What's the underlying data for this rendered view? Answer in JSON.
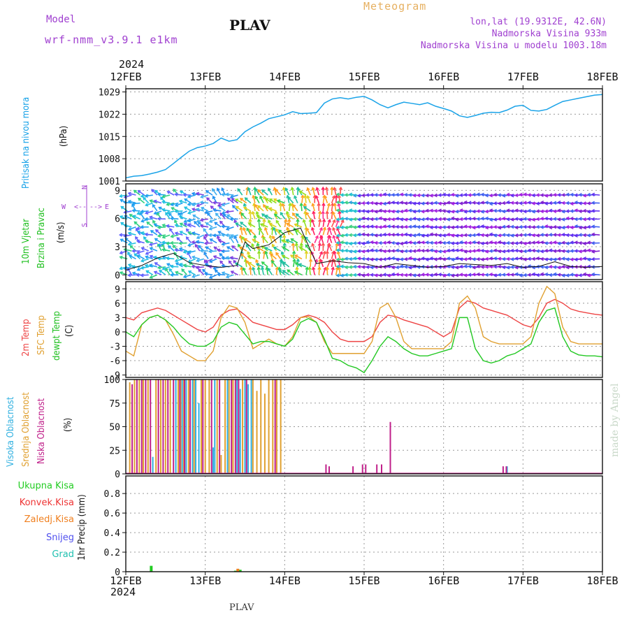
{
  "header": {
    "model_label": "Model",
    "model_name": "wrf-nmm_v3.9.1  e1km",
    "station": "PLAV",
    "meteogram_title": "Meteogram",
    "lonlat": "lon,lat (19.9312E, 42.6N)",
    "elevation": "Nadmorska Visina 933m",
    "model_elevation": "Nadmorska Visina u modelu 1003.18m",
    "year": "2024",
    "footer_station": "PLAV",
    "credit": "made by Angel"
  },
  "colors": {
    "pressure": "#1aa3e8",
    "wind_label": "#20c020",
    "temp2m": "#ee4444",
    "sfc_temp": "#e0a030",
    "dewpt": "#22c822",
    "cloud_high": "#30b0e0",
    "cloud_mid": "#e0a030",
    "cloud_low": "#c0208a",
    "precip_total": "#22cc22",
    "precip_conv": "#ee3333",
    "precip_strat": "#f08020",
    "precip_snow": "#5050ee",
    "precip_grad": "#20c0b0",
    "purple_text": "#a040d0"
  },
  "chart_data": [
    {
      "type": "line",
      "panel": "pressure",
      "title": "Pritisak na nivou mora",
      "ylabel": "(hPa)",
      "x_ticks": [
        "12FEB",
        "13FEB",
        "14FEB",
        "15FEB",
        "16FEB",
        "17FEB",
        "18FEB"
      ],
      "y_ticks": [
        1001,
        1008,
        1015,
        1022,
        1029
      ],
      "ylim": [
        1001,
        1030
      ],
      "grid": true,
      "series": [
        {
          "name": "Pritisak na nivou mora",
          "x": [
            0,
            0.1,
            0.2,
            0.3,
            0.4,
            0.5,
            0.6,
            0.7,
            0.8,
            0.9,
            1.0,
            1.1,
            1.2,
            1.3,
            1.4,
            1.5,
            1.6,
            1.7,
            1.8,
            1.9,
            2.0,
            2.1,
            2.2,
            2.3,
            2.4,
            2.5,
            2.6,
            2.7,
            2.8,
            2.9,
            3.0,
            3.1,
            3.2,
            3.3,
            3.4,
            3.5,
            3.6,
            3.7,
            3.8,
            3.9,
            4.0,
            4.1,
            4.2,
            4.3,
            4.4,
            4.5,
            4.6,
            4.7,
            4.8,
            4.9,
            5.0,
            5.1,
            5.2,
            5.3,
            5.4,
            5.5,
            5.6,
            5.7,
            5.8,
            5.9,
            6.0
          ],
          "values": [
            1002,
            1002.5,
            1002.7,
            1003.2,
            1003.8,
            1004.6,
            1006.5,
            1008.5,
            1010.4,
            1011.5,
            1012,
            1012.8,
            1014.5,
            1013.5,
            1014,
            1016.5,
            1018,
            1019.2,
            1020.6,
            1021.2,
            1021.8,
            1022.8,
            1022.2,
            1022.3,
            1022.5,
            1025.5,
            1026.8,
            1027.2,
            1026.8,
            1027.3,
            1027.6,
            1026.5,
            1025,
            1024,
            1025,
            1025.8,
            1025.4,
            1025,
            1025.6,
            1024.5,
            1023.8,
            1023,
            1021.5,
            1021,
            1021.6,
            1022.3,
            1022.6,
            1022.5,
            1023.3,
            1024.5,
            1024.8,
            1023.2,
            1023,
            1023.5,
            1024.8,
            1026,
            1026.5,
            1027,
            1027.5,
            1028,
            1028.2
          ]
        }
      ]
    },
    {
      "type": "scatter",
      "panel": "wind",
      "title": "10m Vjetar Brzina i Pravac",
      "ylabel": "(m/s)",
      "y_ticks": [
        0,
        3,
        6,
        9
      ],
      "ylim": [
        -0.5,
        9.7
      ],
      "compass_labels": {
        "n": "N",
        "s": "S",
        "e": "E",
        "w": "W"
      },
      "compass_arrows": {
        "n": "<--",
        "s": "-->",
        "w": "<--",
        "e": "-->"
      },
      "grid": true,
      "series": [
        {
          "name": "wind speed",
          "x": [
            0,
            0.2,
            0.4,
            0.6,
            0.8,
            1.0,
            1.2,
            1.4,
            1.5,
            1.6,
            1.8,
            2.0,
            2.2,
            2.4,
            2.6,
            2.8,
            3.0,
            3.2,
            3.4,
            3.6,
            3.8,
            4.0,
            4.2,
            4.4,
            4.6,
            4.8,
            5.0,
            5.2,
            5.4,
            5.6,
            5.8,
            6.0
          ],
          "values": [
            0.5,
            1,
            1.8,
            2.3,
            1.3,
            1,
            0.8,
            1,
            3.5,
            2.8,
            3.2,
            4.5,
            5,
            1.2,
            1.5,
            1.3,
            1.2,
            0.8,
            1.2,
            1,
            0.8,
            0.9,
            1.2,
            1.1,
            1,
            1.2,
            0.8,
            0.9,
            1.4,
            0.9,
            0.8,
            0.9
          ]
        }
      ]
    },
    {
      "type": "line",
      "panel": "temperature",
      "ylabel": "(C)",
      "y_ticks": [
        -9,
        -6,
        -3,
        0,
        3,
        6,
        9
      ],
      "ylim": [
        -9.5,
        10.5
      ],
      "grid": true,
      "series": [
        {
          "name": "2m Temp",
          "x": [
            0,
            0.1,
            0.2,
            0.3,
            0.4,
            0.5,
            0.6,
            0.7,
            0.8,
            0.9,
            1.0,
            1.1,
            1.2,
            1.3,
            1.4,
            1.5,
            1.6,
            1.7,
            1.8,
            1.9,
            2.0,
            2.1,
            2.2,
            2.3,
            2.4,
            2.5,
            2.6,
            2.7,
            2.8,
            2.9,
            3.0,
            3.1,
            3.2,
            3.3,
            3.4,
            3.5,
            3.6,
            3.7,
            3.8,
            3.9,
            4.0,
            4.1,
            4.2,
            4.3,
            4.4,
            4.5,
            4.6,
            4.7,
            4.8,
            4.9,
            5.0,
            5.1,
            5.2,
            5.3,
            5.4,
            5.5,
            5.6,
            5.7,
            5.8,
            5.9,
            6.0
          ],
          "values": [
            3,
            2.5,
            4,
            4.5,
            5,
            4.5,
            3.5,
            2.5,
            1.5,
            0.5,
            0,
            1,
            3.5,
            4.5,
            4.8,
            3.5,
            2,
            1.5,
            1,
            0.5,
            0.5,
            1.5,
            3,
            3.5,
            3,
            2,
            0,
            -1.5,
            -2,
            -2,
            -2,
            -1,
            2,
            3.5,
            3.2,
            2.5,
            2,
            1.5,
            1,
            0,
            -1,
            0,
            5,
            6.5,
            6,
            5,
            4.5,
            4,
            3.5,
            2.5,
            1.5,
            1,
            3,
            6,
            6.8,
            6,
            4.8,
            4.3,
            4,
            3.7,
            3.5
          ]
        },
        {
          "name": "SFC Temp",
          "x": [
            0,
            0.1,
            0.2,
            0.3,
            0.4,
            0.5,
            0.6,
            0.7,
            0.8,
            0.9,
            1.0,
            1.1,
            1.2,
            1.3,
            1.4,
            1.5,
            1.6,
            1.7,
            1.8,
            1.9,
            2.0,
            2.1,
            2.2,
            2.3,
            2.4,
            2.5,
            2.6,
            2.7,
            2.8,
            2.9,
            3.0,
            3.1,
            3.2,
            3.3,
            3.4,
            3.5,
            3.6,
            3.7,
            3.8,
            3.9,
            4.0,
            4.1,
            4.2,
            4.3,
            4.4,
            4.5,
            4.6,
            4.7,
            4.8,
            4.9,
            5.0,
            5.1,
            5.2,
            5.3,
            5.4,
            5.5,
            5.6,
            5.7,
            5.8,
            5.9,
            6.0
          ],
          "values": [
            -4,
            -5,
            1.5,
            3,
            3.5,
            2.5,
            -0.5,
            -4,
            -5,
            -6,
            -6,
            -4,
            3,
            5.5,
            5,
            2,
            -3.5,
            -2.5,
            -1.5,
            -2.5,
            -3,
            -1,
            3,
            3.2,
            2,
            -2,
            -4.5,
            -4.5,
            -4.5,
            -4.5,
            -4.5,
            -2,
            5,
            6,
            3,
            -2,
            -3.5,
            -3.5,
            -3.5,
            -3.5,
            -3.5,
            -2,
            6,
            7.5,
            5,
            -1,
            -2,
            -2.5,
            -2.5,
            -2.5,
            -2.5,
            -1,
            6,
            9.5,
            8,
            1,
            -2,
            -2.5,
            -2.5,
            -2.5,
            -2.5
          ]
        },
        {
          "name": "dewpt Temp",
          "x": [
            0,
            0.1,
            0.2,
            0.3,
            0.4,
            0.5,
            0.6,
            0.7,
            0.8,
            0.9,
            1.0,
            1.1,
            1.2,
            1.3,
            1.4,
            1.5,
            1.6,
            1.7,
            1.8,
            1.9,
            2.0,
            2.1,
            2.2,
            2.3,
            2.4,
            2.5,
            2.6,
            2.7,
            2.8,
            2.9,
            3.0,
            3.1,
            3.2,
            3.3,
            3.4,
            3.5,
            3.6,
            3.7,
            3.8,
            3.9,
            4.0,
            4.1,
            4.2,
            4.3,
            4.4,
            4.5,
            4.6,
            4.7,
            4.8,
            4.9,
            5.0,
            5.1,
            5.2,
            5.3,
            5.4,
            5.5,
            5.6,
            5.7,
            5.8,
            5.9,
            6.0
          ],
          "values": [
            0,
            -1,
            1.5,
            3,
            3.5,
            2.5,
            1,
            -1,
            -2.5,
            -3,
            -3,
            -2,
            1,
            2,
            1.5,
            -0.5,
            -2.5,
            -2,
            -2,
            -2.5,
            -3,
            -1.5,
            2,
            2.8,
            2,
            -1.5,
            -5.5,
            -6,
            -7,
            -7.5,
            -8.5,
            -6,
            -3,
            -1,
            -2,
            -3.5,
            -4.5,
            -5,
            -5,
            -4.5,
            -4,
            -3.5,
            3,
            3,
            -3.5,
            -6,
            -6.5,
            -6,
            -5,
            -4.5,
            -3.5,
            -2.5,
            2,
            4.5,
            5,
            -1,
            -4,
            -4.8,
            -5,
            -5,
            -5.2
          ]
        }
      ]
    },
    {
      "type": "bar",
      "panel": "clouds",
      "ylabel": "(%)",
      "y_ticks": [
        0,
        25,
        50,
        75,
        100
      ],
      "ylim": [
        0,
        100
      ],
      "grid": true,
      "series": [
        {
          "name": "Visoka Oblacnost",
          "x": [
            0.34,
            0.63,
            0.71,
            0.76,
            0.84,
            0.88,
            0.92,
            1.1,
            1.12,
            1.28,
            1.4,
            1.44,
            1.5,
            1.54,
            1.58,
            4.8
          ],
          "values": [
            18,
            100,
            100,
            100,
            100,
            100,
            75,
            28,
            100,
            100,
            100,
            90,
            100,
            95,
            100,
            8
          ]
        },
        {
          "name": "Srednja Oblacnost",
          "x": [
            0.05,
            0.11,
            0.17,
            0.22,
            0.28,
            0.38,
            0.44,
            0.5,
            0.56,
            0.66,
            0.69,
            0.73,
            0.79,
            0.86,
            0.95,
            1.0,
            1.05,
            1.15,
            1.2,
            1.25,
            1.3,
            1.35,
            1.47,
            1.6,
            1.65,
            1.7,
            1.75,
            1.8,
            1.85,
            1.9,
            1.95
          ],
          "values": [
            97,
            100,
            100,
            100,
            100,
            100,
            100,
            100,
            100,
            100,
            100,
            100,
            100,
            100,
            100,
            100,
            100,
            100,
            20,
            100,
            100,
            100,
            100,
            100,
            88,
            100,
            85,
            100,
            100,
            100,
            100
          ]
        },
        {
          "name": "Niska Oblacnost",
          "x": [
            0.08,
            0.14,
            0.2,
            0.25,
            0.31,
            0.41,
            0.47,
            0.53,
            0.6,
            0.68,
            0.74,
            0.81,
            0.97,
            1.08,
            1.18,
            1.33,
            1.38,
            1.42,
            1.52,
            1.88,
            2.52,
            2.56,
            2.86,
            2.98,
            3.02,
            3.16,
            3.22,
            3.33,
            4.75,
            4.79
          ],
          "values": [
            95,
            100,
            100,
            100,
            100,
            100,
            100,
            100,
            100,
            100,
            100,
            100,
            100,
            100,
            100,
            100,
            100,
            100,
            100,
            100,
            10,
            8,
            8,
            10,
            10,
            10,
            10,
            55,
            8,
            8
          ]
        }
      ]
    },
    {
      "type": "bar",
      "panel": "precipitation",
      "ylabel": "1hr Precip (mm)",
      "y_ticks": [
        0,
        0.2,
        0.4,
        0.6,
        0.8
      ],
      "ylim": [
        0,
        0.98
      ],
      "grid": true,
      "series": [
        {
          "name": "Ukupna Kisa",
          "x": [
            0.32,
            1.38,
            1.44
          ],
          "values": [
            0.06,
            0.01,
            0.02
          ]
        },
        {
          "name": "Konvek.Kisa",
          "x": [],
          "values": []
        },
        {
          "name": "Zaledj.Kisa",
          "x": [
            1.41
          ],
          "values": [
            0.03
          ]
        },
        {
          "name": "Snijeg",
          "x": [],
          "values": []
        },
        {
          "name": "Grad",
          "x": [],
          "values": []
        }
      ]
    }
  ],
  "panel_labels": {
    "pressure": "Pritisak na nivou mora",
    "pressure_unit": "(hPa)",
    "wind_line1": "10m Vjetar",
    "wind_line2": "Brzina i Pravac",
    "wind_unit": "(m/s)",
    "t2m": "2m Temp",
    "tsfc": "SFC Temp",
    "tdew": "dewpt Temp",
    "temp_unit": "(C)",
    "c_high": "Visoka Oblacnost",
    "c_mid": "Srednja Oblacnost",
    "c_low": "Niska Oblacnost",
    "cloud_unit": "(%)",
    "precip_unit": "1hr Precip (mm)",
    "p_total": "Ukupna Kisa",
    "p_conv": "Konvek.Kisa",
    "p_strat": "Zaledj.Kisa",
    "p_snow": "Snijeg",
    "p_grad": "Grad"
  },
  "x_axis": {
    "ticks": [
      "12FEB",
      "13FEB",
      "14FEB",
      "15FEB",
      "16FEB",
      "17FEB",
      "18FEB"
    ]
  }
}
